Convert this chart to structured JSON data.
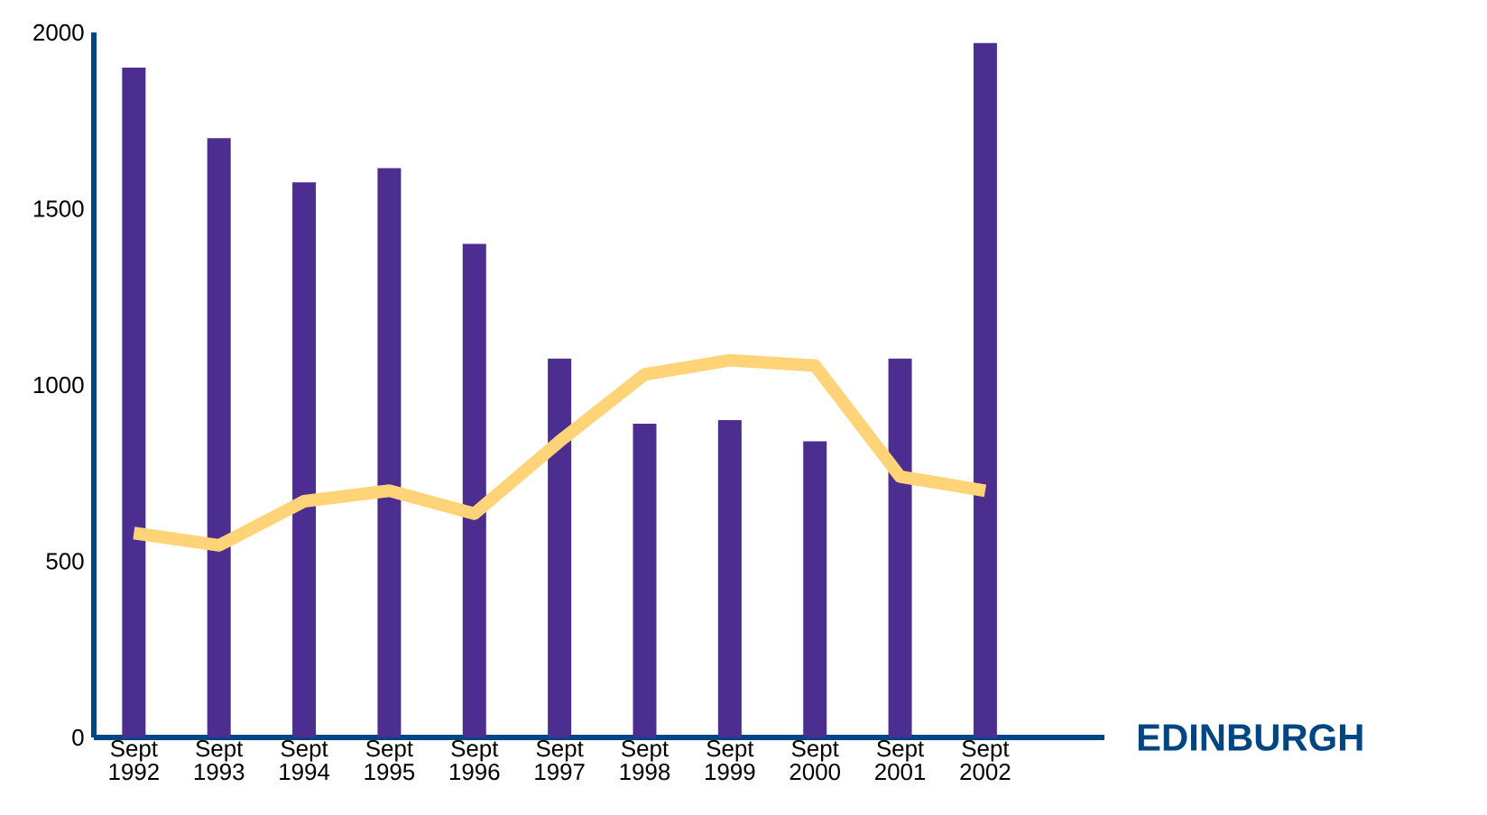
{
  "chart_data": {
    "type": "bar",
    "categories": [
      "Sept 1992",
      "Sept 1993",
      "Sept 1994",
      "Sept 1995",
      "Sept 1996",
      "Sept 1997",
      "Sept 1998",
      "Sept 1999",
      "Sept 2000",
      "Sept 2001",
      "Sept 2002"
    ],
    "series": [
      {
        "color": "#4b2e8f",
        "values": [
          1900,
          1700,
          1575,
          1615,
          1400,
          1075,
          890,
          900,
          840,
          1075,
          1970
        ]
      },
      {
        "type": "line",
        "color": "#ffd479",
        "values": [
          580,
          545,
          670,
          700,
          635,
          840,
          1030,
          1070,
          1055,
          740,
          700
        ]
      }
    ],
    "ylim": [
      0,
      2000
    ],
    "yticks": [
      0,
      500,
      1000,
      1500,
      2000
    ],
    "annotations": [
      "EDINBURGH"
    ]
  }
}
